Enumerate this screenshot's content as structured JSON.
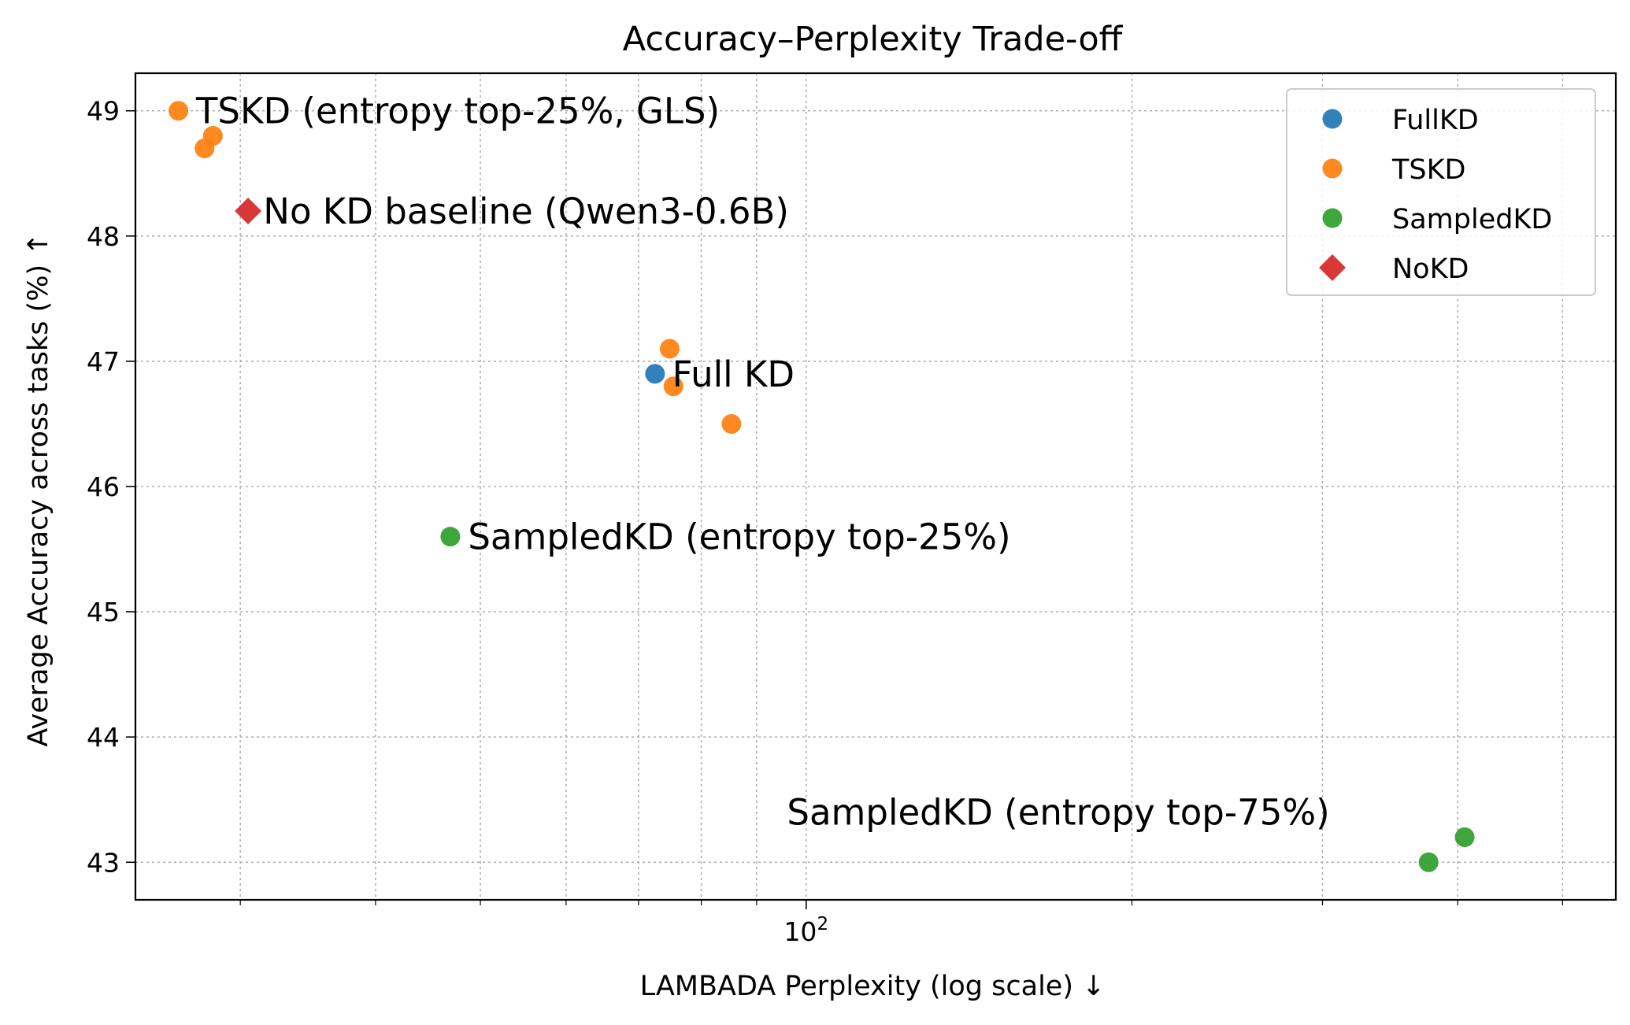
{
  "chart_data": {
    "type": "scatter",
    "title": "Accuracy–Perplexity Trade-off",
    "xlabel": "LAMBADA Perplexity (log scale) ↓",
    "ylabel": "Average Accuracy across tasks (%) ↑",
    "x_scale": "log",
    "xlim": [
      24.0,
      560.0
    ],
    "ylim": [
      42.7,
      49.3
    ],
    "x_ticks": [
      {
        "value": 100,
        "base": "10",
        "exp": "2"
      }
    ],
    "y_ticks": [
      43,
      44,
      45,
      46,
      47,
      48,
      49
    ],
    "grid": true,
    "legend_position": "top-right",
    "series": [
      {
        "name": "FullKD",
        "color": "#1f77b4",
        "marker": "circle",
        "points": [
          {
            "x": 72.5,
            "y": 46.9
          }
        ]
      },
      {
        "name": "TSKD",
        "color": "#ff7f0e",
        "marker": "circle",
        "points": [
          {
            "x": 26.3,
            "y": 49.0
          },
          {
            "x": 28.3,
            "y": 48.8
          },
          {
            "x": 27.8,
            "y": 48.7
          },
          {
            "x": 74.8,
            "y": 47.1
          },
          {
            "x": 75.4,
            "y": 46.8
          },
          {
            "x": 85.3,
            "y": 46.5
          }
        ]
      },
      {
        "name": "SampledKD",
        "color": "#2ca02c",
        "marker": "circle",
        "points": [
          {
            "x": 46.9,
            "y": 45.6
          },
          {
            "x": 376.0,
            "y": 43.0
          },
          {
            "x": 406.0,
            "y": 43.2
          }
        ]
      },
      {
        "name": "NoKD",
        "color": "#d62728",
        "marker": "diamond",
        "points": [
          {
            "x": 30.5,
            "y": 48.2
          }
        ]
      }
    ],
    "annotations": [
      {
        "text": "TSKD (entropy top-25%, GLS)",
        "x": 27.3,
        "y": 49.0
      },
      {
        "text": "No KD baseline (Qwen3-0.6B)",
        "x": 31.5,
        "y": 48.2
      },
      {
        "text": "Full KD",
        "x": 75.2,
        "y": 46.9
      },
      {
        "text": "SampledKD (entropy top-25%)",
        "x": 48.7,
        "y": 45.6
      },
      {
        "text": "SampledKD (entropy top-75%)",
        "x": 96.0,
        "y": 43.4
      }
    ]
  }
}
